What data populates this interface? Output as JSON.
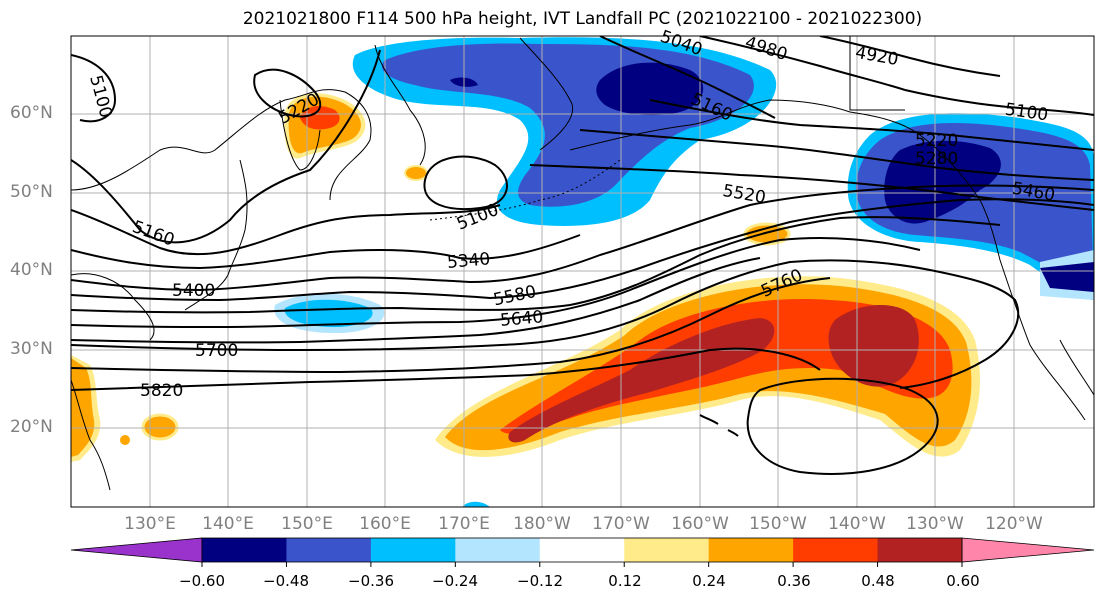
{
  "title": "2021021800 F114 500 hPa height, IVT Landfall PC (2021022100 - 2021022300)",
  "lat_labels": [
    "60°N",
    "50°N",
    "40°N",
    "30°N",
    "20°N"
  ],
  "lon_labels": [
    "130°E",
    "140°E",
    "150°E",
    "160°E",
    "170°E",
    "180°W",
    "170°W",
    "160°W",
    "150°W",
    "140°W",
    "130°W",
    "120°W"
  ],
  "contour_labels": [
    "5100",
    "5220",
    "5160",
    "5100",
    "5400",
    "5340",
    "5580",
    "5640",
    "5700",
    "5820",
    "5520",
    "5760",
    "4980",
    "4920",
    "5100",
    "5460",
    "5160",
    "5220",
    "5280",
    "5040"
  ],
  "colorbar": {
    "tick_labels": [
      "−0.60",
      "−0.48",
      "−0.36",
      "−0.24",
      "−0.12",
      "0.12",
      "0.24",
      "0.36",
      "0.48",
      "0.60"
    ],
    "colors": [
      "#9933cc",
      "#000080",
      "#3a55cc",
      "#00bfff",
      "#b3e5ff",
      "#ffffff",
      "#ffeb8a",
      "#ffa500",
      "#ff3d00",
      "#b22222",
      "#ff85ab"
    ]
  }
}
